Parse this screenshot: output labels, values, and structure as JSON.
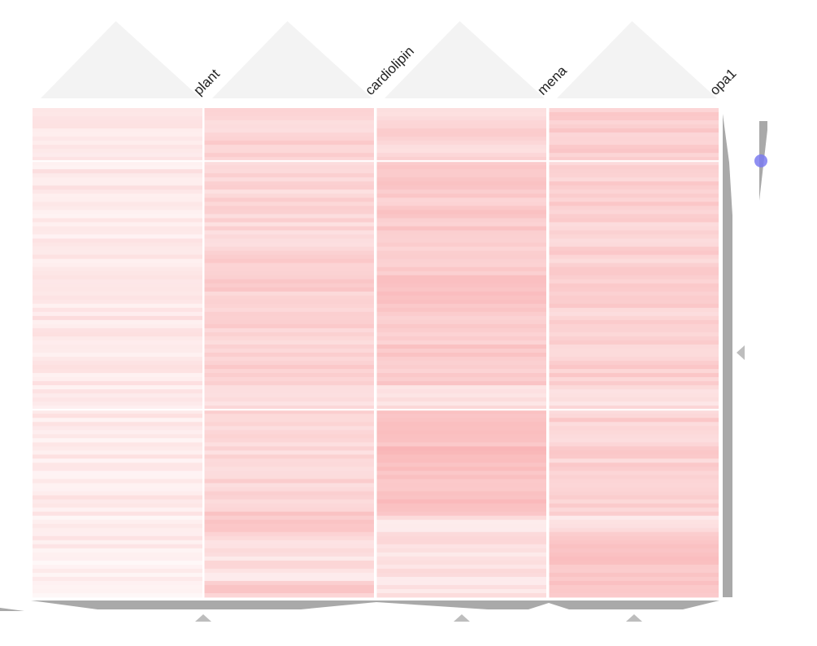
{
  "chart_data": {
    "type": "heatmap",
    "columns": [
      "plant",
      "cardiolipin",
      "mena",
      "opa1"
    ],
    "row_count": 120,
    "row_groups": [
      {
        "rows": 13,
        "levels": [
          0.25,
          0.42,
          0.4,
          0.47
        ]
      },
      {
        "rows": 23,
        "levels": [
          0.22,
          0.4,
          0.52,
          0.45
        ]
      },
      {
        "rows": 16,
        "levels": [
          0.24,
          0.46,
          0.54,
          0.44
        ]
      },
      {
        "rows": 16,
        "levels": [
          0.22,
          0.44,
          0.52,
          0.46
        ]
      },
      {
        "rows": 6,
        "levels": [
          0.18,
          0.3,
          0.34,
          0.32
        ]
      },
      {
        "rows": 26,
        "levels": [
          0.22,
          0.4,
          0.62,
          0.44
        ]
      },
      {
        "rows": 20,
        "levels": [
          0.18,
          0.3,
          0.3,
          0.3
        ]
      }
    ],
    "column_overrides": [
      {
        "column": "cardiolipin",
        "row_start": 99,
        "row_end": 105,
        "level": 0.52
      },
      {
        "column": "opa1",
        "row_start": 104,
        "row_end": 120,
        "level": 0.56
      },
      {
        "column": "cardiolipin",
        "row_start": 116,
        "row_end": 120,
        "level": 0.5
      }
    ],
    "color_scale": {
      "low": "#ffffff",
      "high": "#f7999b"
    },
    "legend_position": "right",
    "grid": false
  }
}
